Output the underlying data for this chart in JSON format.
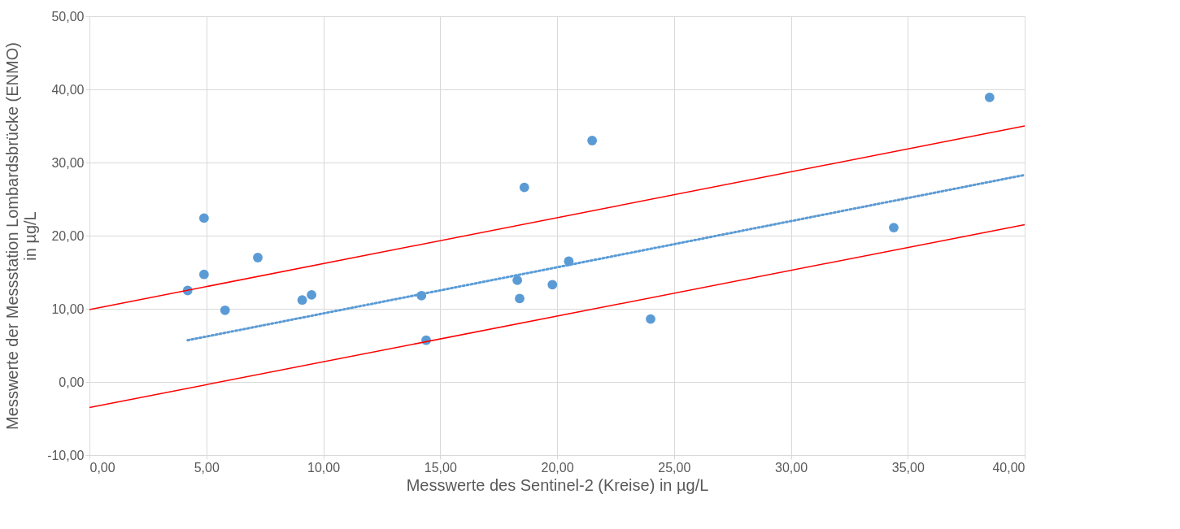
{
  "chart_data": {
    "type": "scatter",
    "xlabel": "Messwerte des Sentinel-2 (Kreise) in µg/L",
    "ylabel": "Messwerte der Messstation Lombardsbrücke (ENMO) in µg/L",
    "xlim": [
      0,
      40
    ],
    "ylim": [
      -10,
      50
    ],
    "xticks": [
      {
        "value": 0,
        "label": "0,00"
      },
      {
        "value": 5,
        "label": "5,00"
      },
      {
        "value": 10,
        "label": "10,00"
      },
      {
        "value": 15,
        "label": "15,00"
      },
      {
        "value": 20,
        "label": "20,00"
      },
      {
        "value": 25,
        "label": "25,00"
      },
      {
        "value": 30,
        "label": "30,00"
      },
      {
        "value": 35,
        "label": "35,00"
      },
      {
        "value": 40,
        "label": "40,00"
      }
    ],
    "yticks": [
      {
        "value": -10,
        "label": "-10,00"
      },
      {
        "value": 0,
        "label": "0,00"
      },
      {
        "value": 10,
        "label": "10,00"
      },
      {
        "value": 20,
        "label": "20,00"
      },
      {
        "value": 30,
        "label": "30,00"
      },
      {
        "value": 40,
        "label": "40,00"
      },
      {
        "value": 50,
        "label": "50,00"
      }
    ],
    "grid": true,
    "marker": "circle",
    "series": [
      {
        "color": "#5b9bd5",
        "x": [
          4.2,
          4.9,
          4.9,
          5.8,
          7.2,
          9.1,
          9.5,
          14.2,
          14.4,
          18.3,
          18.4,
          18.6,
          19.8,
          20.5,
          21.5,
          24.0,
          34.4,
          38.5
        ],
        "values": [
          12.5,
          22.4,
          14.7,
          9.8,
          17.0,
          11.2,
          11.9,
          11.8,
          5.7,
          13.9,
          11.4,
          26.6,
          13.3,
          16.5,
          33.0,
          8.6,
          21.1,
          38.9
        ]
      },
      {
        "type": "line",
        "color": "#5b9bd5",
        "line_style": "dotted",
        "marker": "none",
        "x": [
          4.2,
          40
        ],
        "values": [
          5.7,
          28.3
        ]
      },
      {
        "type": "line",
        "color": "#ff0000",
        "line_style": "solid",
        "marker": "none",
        "x": [
          0,
          40
        ],
        "values": [
          9.9,
          35.0
        ]
      },
      {
        "type": "line",
        "color": "#ff0000",
        "line_style": "solid",
        "marker": "none",
        "x": [
          0,
          40
        ],
        "values": [
          -3.5,
          21.5
        ]
      }
    ]
  }
}
